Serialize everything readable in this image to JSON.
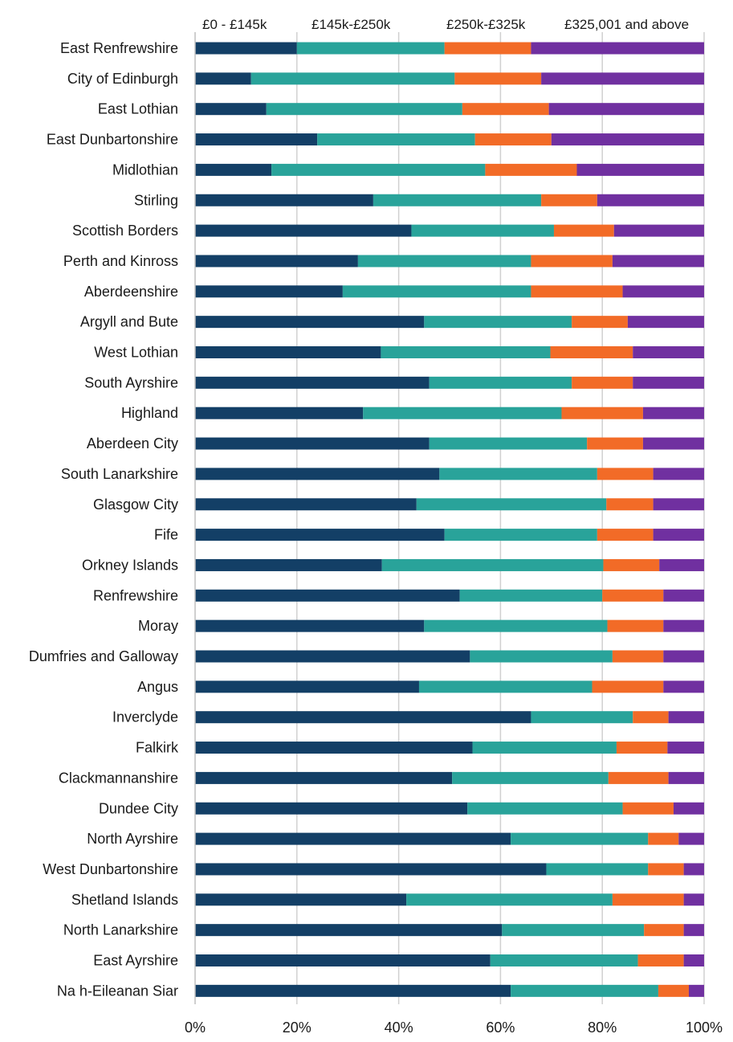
{
  "chart_data": {
    "type": "bar",
    "orientation": "horizontal",
    "stacked": "percent",
    "title": "",
    "xlabel": "",
    "ylabel": "",
    "xlim": [
      0,
      100
    ],
    "x_ticks": [
      "0%",
      "20%",
      "40%",
      "60%",
      "80%",
      "100%"
    ],
    "x_tick_values": [
      0,
      20,
      40,
      60,
      80,
      100
    ],
    "grid": "vertical",
    "legend_position": "top",
    "categories": [
      "East Renfrewshire",
      "City of Edinburgh",
      "East Lothian",
      "East Dunbartonshire",
      "Midlothian",
      "Stirling",
      "Scottish Borders",
      "Perth and Kinross",
      "Aberdeenshire",
      "Argyll and Bute",
      "West Lothian",
      "South Ayrshire",
      "Highland",
      "Aberdeen City",
      "South Lanarkshire",
      "Glasgow City",
      "Fife",
      "Orkney Islands",
      "Renfrewshire",
      "Moray",
      "Dumfries and Galloway",
      "Angus",
      "Inverclyde",
      "Falkirk",
      "Clackmannanshire",
      "Dundee City",
      "North Ayrshire",
      "West Dunbartonshire",
      "Shetland Islands",
      "North Lanarkshire",
      "East Ayrshire",
      "Na h-Eileanan Siar"
    ],
    "series": [
      {
        "name": "£0 - £145k",
        "color": "#133f66",
        "values": [
          20,
          11,
          14,
          24,
          15,
          35,
          42.5,
          32,
          29,
          45,
          36.5,
          46,
          33,
          46,
          48,
          43.5,
          49,
          36.7,
          52,
          45,
          54,
          44,
          66,
          54.5,
          50.5,
          53.5,
          62,
          69,
          41.5,
          60.3,
          58,
          62
        ]
      },
      {
        "name": "£145k-£250k",
        "color": "#29a39a",
        "values": [
          29,
          40,
          38.5,
          31,
          42,
          33,
          28,
          34,
          37,
          29,
          33.3,
          28,
          39,
          31,
          31,
          37.3,
          30,
          43.5,
          28,
          36,
          28,
          34,
          20,
          28.3,
          30.7,
          30.5,
          27,
          20,
          40.5,
          27.9,
          29,
          29
        ]
      },
      {
        "name": "£250k-£325k",
        "color": "#f26b27",
        "values": [
          17,
          17,
          17,
          15,
          18,
          11,
          11.8,
          16,
          18,
          11,
          16.2,
          12,
          16,
          11,
          11,
          9.2,
          11,
          11,
          12,
          11,
          10,
          14,
          7,
          10,
          11.8,
          10,
          6,
          7,
          14,
          7.8,
          9,
          6
        ]
      },
      {
        "name": "£325,001 and above",
        "color": "#7030a0",
        "values": [
          34,
          32,
          30.5,
          30,
          25,
          21,
          17.7,
          18,
          16,
          15,
          14,
          14,
          12,
          12,
          10,
          10,
          10,
          8.8,
          8,
          8,
          8,
          8,
          7,
          7.2,
          7,
          6,
          5,
          4,
          4,
          4,
          4,
          3
        ]
      }
    ]
  }
}
